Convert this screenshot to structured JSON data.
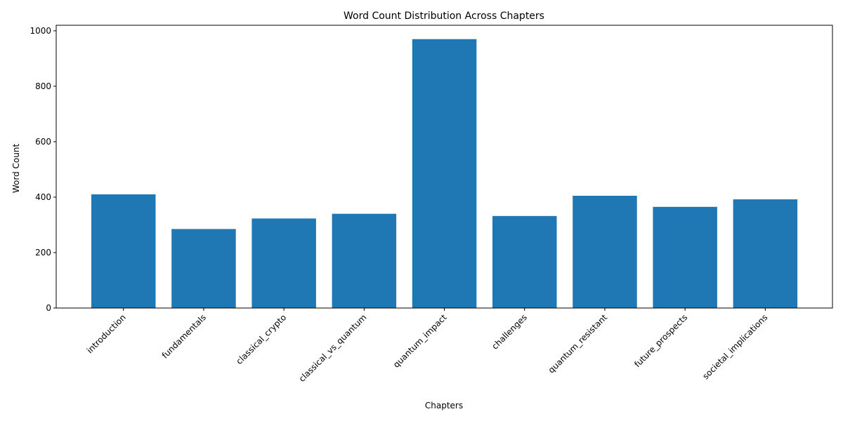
{
  "chart_data": {
    "type": "bar",
    "title": "Word Count Distribution Across Chapters",
    "xlabel": "Chapters",
    "ylabel": "Word Count",
    "categories": [
      "introduction",
      "fundamentals",
      "classical_crypto",
      "classical_vs_quantum",
      "quantum_impact",
      "challenges",
      "quantum_resistant",
      "future_prospects",
      "societal_implications"
    ],
    "values": [
      410,
      285,
      323,
      340,
      970,
      332,
      405,
      365,
      392
    ],
    "ylim": [
      0,
      1020
    ],
    "yticks": [
      0,
      200,
      400,
      600,
      800,
      1000
    ],
    "bar_color": "#1f77b4",
    "grid": false,
    "legend": "none"
  }
}
